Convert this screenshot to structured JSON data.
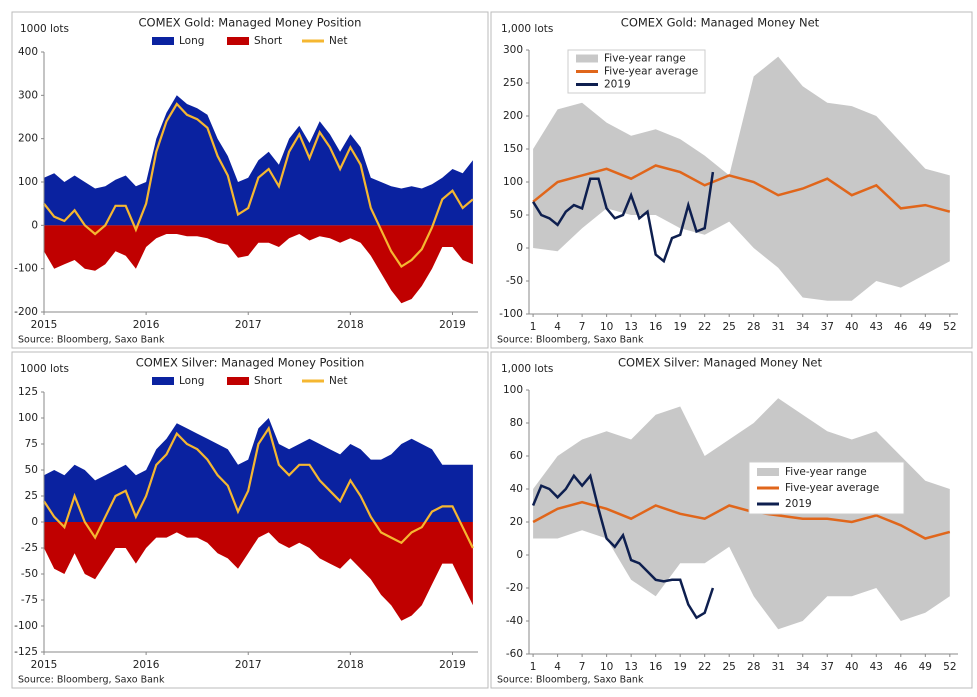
{
  "chart_data": [
    {
      "type": "area",
      "title": "COMEX Gold: Managed Money Position",
      "ylabel": "1000 lots",
      "source": "Source: Bloomberg, Saxo Bank",
      "x": [
        2015.0,
        2015.1,
        2015.2,
        2015.3,
        2015.4,
        2015.5,
        2015.6,
        2015.7,
        2015.8,
        2015.9,
        2016.0,
        2016.1,
        2016.2,
        2016.3,
        2016.4,
        2016.5,
        2016.6,
        2016.7,
        2016.8,
        2016.9,
        2017.0,
        2017.1,
        2017.2,
        2017.3,
        2017.4,
        2017.5,
        2017.6,
        2017.7,
        2017.8,
        2017.9,
        2018.0,
        2018.1,
        2018.2,
        2018.3,
        2018.4,
        2018.5,
        2018.6,
        2018.7,
        2018.8,
        2018.9,
        2019.0,
        2019.1,
        2019.2
      ],
      "series": [
        {
          "name": "Long",
          "color": "#0a22a0",
          "style": "area",
          "values": [
            110,
            120,
            100,
            115,
            100,
            85,
            90,
            105,
            115,
            90,
            100,
            200,
            260,
            300,
            280,
            270,
            255,
            200,
            160,
            100,
            110,
            150,
            170,
            140,
            200,
            230,
            190,
            240,
            210,
            170,
            210,
            180,
            110,
            100,
            90,
            85,
            90,
            85,
            95,
            110,
            130,
            120,
            150
          ]
        },
        {
          "name": "Short",
          "color": "#c00000",
          "style": "area",
          "values": [
            -60,
            -100,
            -90,
            -80,
            -100,
            -105,
            -90,
            -60,
            -70,
            -100,
            -50,
            -30,
            -20,
            -20,
            -25,
            -25,
            -30,
            -40,
            -45,
            -75,
            -70,
            -40,
            -40,
            -50,
            -30,
            -20,
            -35,
            -25,
            -30,
            -40,
            -30,
            -40,
            -70,
            -110,
            -150,
            -180,
            -170,
            -140,
            -100,
            -50,
            -50,
            -80,
            -90
          ]
        },
        {
          "name": "Net",
          "color": "#f5b731",
          "style": "line",
          "values": [
            50,
            20,
            10,
            35,
            0,
            -20,
            0,
            45,
            45,
            -10,
            50,
            170,
            240,
            280,
            255,
            245,
            225,
            160,
            115,
            25,
            40,
            110,
            130,
            90,
            170,
            210,
            155,
            215,
            180,
            130,
            180,
            140,
            40,
            -10,
            -60,
            -95,
            -80,
            -55,
            -5,
            60,
            80,
            40,
            60
          ]
        }
      ],
      "xlim": [
        2015,
        2019.25
      ],
      "xticks": [
        2015,
        2016,
        2017,
        2018,
        2019
      ],
      "ylim": [
        -200,
        400
      ],
      "yticks": [
        -200,
        -100,
        0,
        100,
        200,
        300,
        400
      ]
    },
    {
      "type": "range",
      "title": "COMEX Gold: Managed Money Net",
      "ylabel": "1,000 lots",
      "source": "Source: Bloomberg, Saxo Bank",
      "x": [
        1,
        4,
        7,
        10,
        13,
        16,
        19,
        22,
        25,
        28,
        31,
        34,
        37,
        40,
        43,
        46,
        49,
        52
      ],
      "range": {
        "name": "Five-year range",
        "color": "#c8c8c8",
        "high": [
          150,
          210,
          220,
          190,
          170,
          180,
          165,
          140,
          110,
          260,
          290,
          245,
          220,
          215,
          200,
          160,
          120,
          110
        ],
        "low": [
          0,
          -5,
          30,
          60,
          50,
          50,
          30,
          20,
          40,
          0,
          -30,
          -75,
          -80,
          -80,
          -50,
          -60,
          -40,
          -20
        ]
      },
      "average": {
        "name": "Five-year average",
        "color": "#e0661b",
        "values": [
          70,
          100,
          110,
          120,
          105,
          125,
          115,
          95,
          110,
          100,
          80,
          90,
          105,
          80,
          95,
          60,
          65,
          55
        ]
      },
      "current": {
        "name": "2019",
        "color": "#0e1f4f",
        "x": [
          1,
          2,
          3,
          4,
          5,
          6,
          7,
          8,
          9,
          10,
          11,
          12,
          13,
          14,
          15,
          16,
          17,
          18,
          19,
          20,
          21,
          22,
          23
        ],
        "values": [
          70,
          50,
          45,
          35,
          55,
          65,
          60,
          105,
          105,
          60,
          45,
          50,
          80,
          45,
          55,
          -10,
          -20,
          15,
          20,
          65,
          25,
          30,
          115
        ]
      },
      "xlim": [
        0.5,
        53
      ],
      "xticks": [
        1,
        4,
        7,
        10,
        13,
        16,
        19,
        22,
        25,
        28,
        31,
        34,
        37,
        40,
        43,
        46,
        49,
        52
      ],
      "ylim": [
        -100,
        300
      ],
      "yticks": [
        -100,
        -50,
        0,
        50,
        100,
        150,
        200,
        250,
        300
      ]
    },
    {
      "type": "area",
      "title": "COMEX Silver: Managed Money Position",
      "ylabel": "1000 lots",
      "source": "Source: Bloomberg, Saxo Bank",
      "x": [
        2015.0,
        2015.1,
        2015.2,
        2015.3,
        2015.4,
        2015.5,
        2015.6,
        2015.7,
        2015.8,
        2015.9,
        2016.0,
        2016.1,
        2016.2,
        2016.3,
        2016.4,
        2016.5,
        2016.6,
        2016.7,
        2016.8,
        2016.9,
        2017.0,
        2017.1,
        2017.2,
        2017.3,
        2017.4,
        2017.5,
        2017.6,
        2017.7,
        2017.8,
        2017.9,
        2018.0,
        2018.1,
        2018.2,
        2018.3,
        2018.4,
        2018.5,
        2018.6,
        2018.7,
        2018.8,
        2018.9,
        2019.0,
        2019.1,
        2019.2
      ],
      "series": [
        {
          "name": "Long",
          "color": "#0a22a0",
          "style": "area",
          "values": [
            45,
            50,
            45,
            55,
            50,
            40,
            45,
            50,
            55,
            45,
            50,
            70,
            80,
            95,
            90,
            85,
            80,
            75,
            70,
            55,
            60,
            90,
            100,
            75,
            70,
            75,
            80,
            75,
            70,
            65,
            75,
            70,
            60,
            60,
            65,
            75,
            80,
            75,
            70,
            55,
            55,
            55,
            55
          ]
        },
        {
          "name": "Short",
          "color": "#c00000",
          "style": "area",
          "values": [
            -25,
            -45,
            -50,
            -30,
            -50,
            -55,
            -40,
            -25,
            -25,
            -40,
            -25,
            -15,
            -15,
            -10,
            -15,
            -15,
            -20,
            -30,
            -35,
            -45,
            -30,
            -15,
            -10,
            -20,
            -25,
            -20,
            -25,
            -35,
            -40,
            -45,
            -35,
            -45,
            -55,
            -70,
            -80,
            -95,
            -90,
            -80,
            -60,
            -40,
            -40,
            -60,
            -80
          ]
        },
        {
          "name": "Net",
          "color": "#f5b731",
          "style": "line",
          "values": [
            20,
            5,
            -5,
            25,
            0,
            -15,
            5,
            25,
            30,
            5,
            25,
            55,
            65,
            85,
            75,
            70,
            60,
            45,
            35,
            10,
            30,
            75,
            90,
            55,
            45,
            55,
            55,
            40,
            30,
            20,
            40,
            25,
            5,
            -10,
            -15,
            -20,
            -10,
            -5,
            10,
            15,
            15,
            -5,
            -25
          ]
        }
      ],
      "xlim": [
        2015,
        2019.25
      ],
      "xticks": [
        2015,
        2016,
        2017,
        2018,
        2019
      ],
      "ylim": [
        -125,
        125
      ],
      "yticks": [
        -125,
        -100,
        -75,
        -50,
        -25,
        0,
        25,
        50,
        75,
        100,
        125
      ]
    },
    {
      "type": "range",
      "title": "COMEX Silver: Managed Money Net",
      "ylabel": "1,000 lots",
      "source": "Source: Bloomberg, Saxo Bank",
      "x": [
        1,
        4,
        7,
        10,
        13,
        16,
        19,
        22,
        25,
        28,
        31,
        34,
        37,
        40,
        43,
        46,
        49,
        52
      ],
      "range": {
        "name": "Five-year range",
        "color": "#c8c8c8",
        "high": [
          40,
          60,
          70,
          75,
          70,
          85,
          90,
          60,
          70,
          80,
          95,
          85,
          75,
          70,
          75,
          60,
          45,
          40
        ],
        "low": [
          10,
          10,
          15,
          10,
          -15,
          -25,
          -5,
          -5,
          5,
          -25,
          -45,
          -40,
          -25,
          -25,
          -20,
          -40,
          -35,
          -25
        ]
      },
      "average": {
        "name": "Five-year average",
        "color": "#e0661b",
        "values": [
          20,
          28,
          32,
          28,
          22,
          30,
          25,
          22,
          30,
          26,
          24,
          22,
          22,
          20,
          24,
          18,
          10,
          14
        ]
      },
      "current": {
        "name": "2019",
        "color": "#0e1f4f",
        "x": [
          1,
          2,
          3,
          4,
          5,
          6,
          7,
          8,
          9,
          10,
          11,
          12,
          13,
          14,
          15,
          16,
          17,
          18,
          19,
          20,
          21,
          22,
          23
        ],
        "values": [
          30,
          42,
          40,
          35,
          40,
          48,
          42,
          48,
          28,
          10,
          5,
          12,
          -3,
          -5,
          -10,
          -15,
          -16,
          -15,
          -15,
          -30,
          -38,
          -35,
          -20
        ]
      },
      "xlim": [
        0.5,
        53
      ],
      "xticks": [
        1,
        4,
        7,
        10,
        13,
        16,
        19,
        22,
        25,
        28,
        31,
        34,
        37,
        40,
        43,
        46,
        49,
        52
      ],
      "ylim": [
        -60,
        100
      ],
      "yticks": [
        -60,
        -40,
        -20,
        0,
        20,
        40,
        60,
        80,
        100
      ]
    }
  ]
}
